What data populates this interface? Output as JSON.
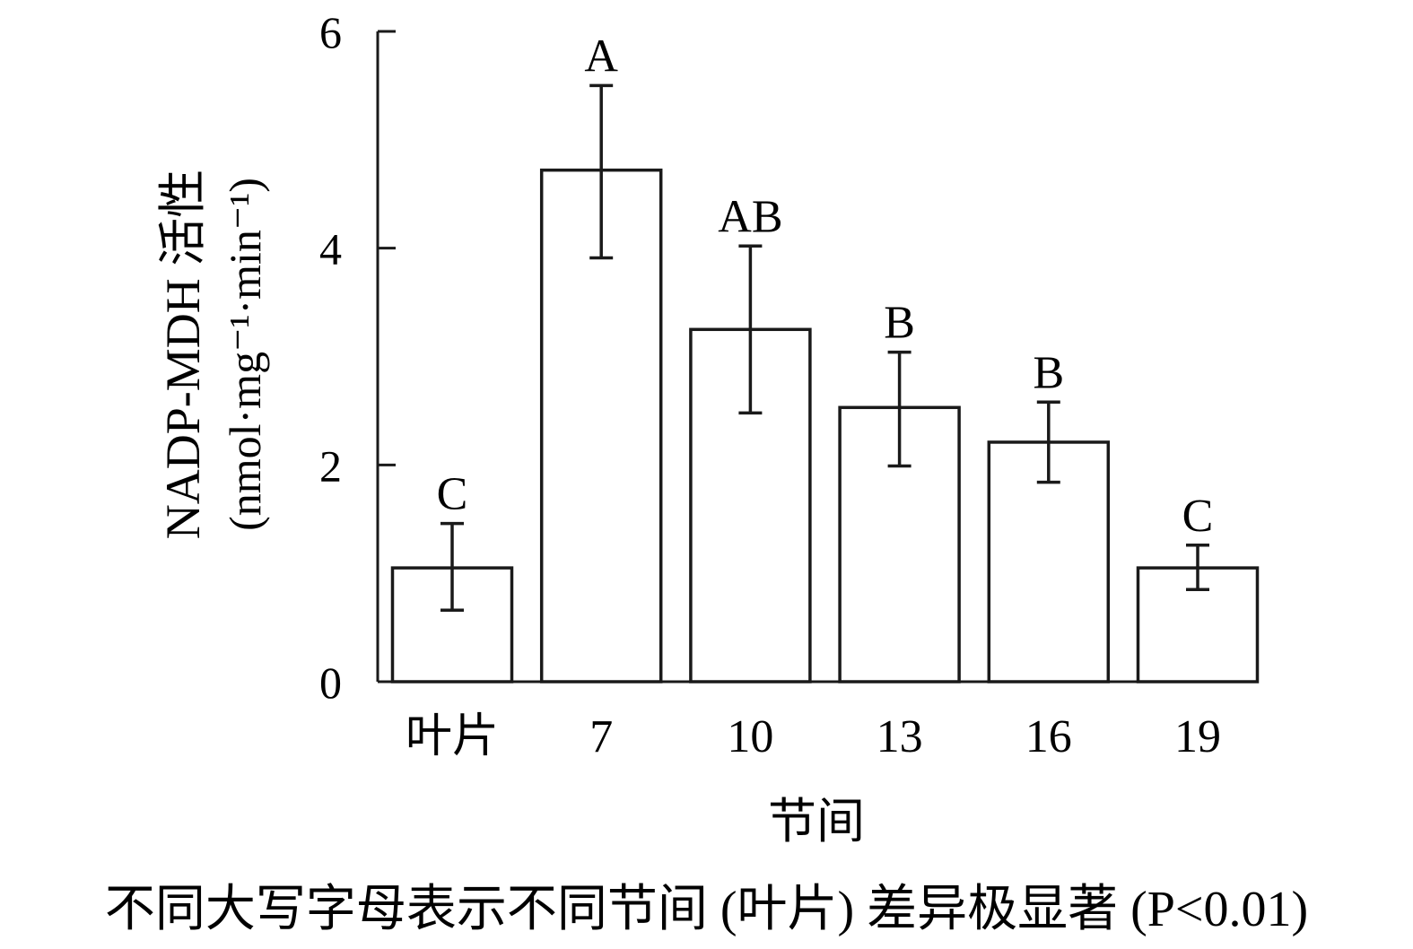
{
  "chart_data": {
    "type": "bar",
    "categories": [
      "叶片",
      "7",
      "10",
      "13",
      "16",
      "19"
    ],
    "values": [
      1.05,
      4.72,
      3.25,
      2.53,
      2.21,
      1.05
    ],
    "error_low": [
      0.66,
      3.91,
      2.48,
      1.99,
      1.84,
      0.85
    ],
    "error_high": [
      1.46,
      5.5,
      4.02,
      3.04,
      2.58,
      1.26
    ],
    "significance_letters": [
      "C",
      "A",
      "AB",
      "B",
      "B",
      "C"
    ],
    "xlabel": "节间",
    "ylabel_line1": "NADP-MDH 活性",
    "ylabel_line2": "(nmol·mg⁻¹·min⁻¹)",
    "ylim": [
      0,
      6
    ],
    "yticks": [
      0,
      2,
      4,
      6
    ],
    "grid": false,
    "bar_fill": "#ffffff",
    "bar_stroke": "#1a1a1a"
  },
  "caption": "不同大写字母表示不同节间 (叶片) 差异极显著 (P<0.01)"
}
